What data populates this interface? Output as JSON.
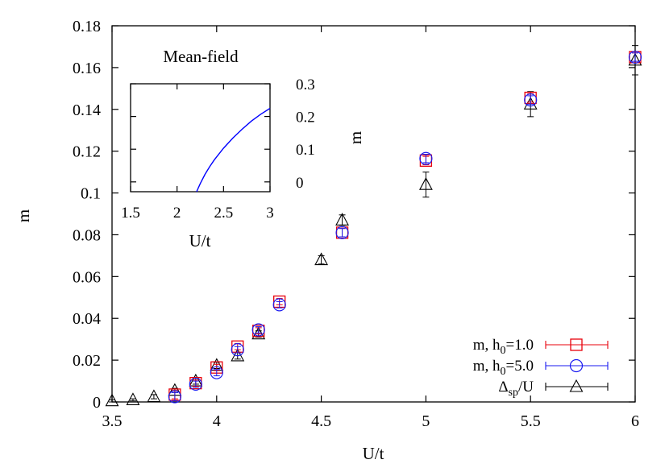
{
  "chart_data": [
    {
      "type": "scatter",
      "title": "",
      "xlabel": "U/t",
      "ylabel": "m",
      "xlim": [
        3.5,
        6
      ],
      "ylim": [
        0,
        0.18
      ],
      "x_ticks": [
        3.5,
        4,
        4.5,
        5,
        5.5,
        6
      ],
      "x_tick_labels": [
        "3.5",
        "4",
        "4.5",
        "5",
        "5.5",
        "6"
      ],
      "y_ticks": [
        0,
        0.02,
        0.04,
        0.06,
        0.08,
        0.1,
        0.12,
        0.14,
        0.16,
        0.18
      ],
      "y_tick_labels": [
        "0",
        "0.02",
        "0.04",
        "0.06",
        "0.08",
        "0.1",
        "0.12",
        "0.14",
        "0.16",
        "0.18"
      ],
      "grid": false,
      "legend_position": "bottom-right",
      "series": [
        {
          "name": "m, h0=1.0",
          "legend_main": "m, h",
          "legend_sub": "0",
          "legend_tail": "=1.0",
          "marker": "square",
          "color": "#e8000b",
          "points": [
            {
              "x": 3.8,
              "y": 0.0035,
              "err": 0.002
            },
            {
              "x": 3.9,
              "y": 0.009,
              "err": 0.0015
            },
            {
              "x": 4.0,
              "y": 0.0165,
              "err": 0.0015
            },
            {
              "x": 4.1,
              "y": 0.0265,
              "err": 0.0015
            },
            {
              "x": 4.2,
              "y": 0.034,
              "err": 0.0015
            },
            {
              "x": 4.3,
              "y": 0.048,
              "err": 0.0015
            },
            {
              "x": 4.6,
              "y": 0.081,
              "err": 0.002
            },
            {
              "x": 5.0,
              "y": 0.1155,
              "err": 0.002
            },
            {
              "x": 5.5,
              "y": 0.1455,
              "err": 0.002
            },
            {
              "x": 6.0,
              "y": 0.165,
              "err": 0.002
            }
          ]
        },
        {
          "name": "m, h0=5.0",
          "legend_main": "m, h",
          "legend_sub": "0",
          "legend_tail": "=5.0",
          "marker": "circle",
          "color": "#1a1af0",
          "points": [
            {
              "x": 3.8,
              "y": 0.0025,
              "err": 0.002
            },
            {
              "x": 3.9,
              "y": 0.0085,
              "err": 0.0015
            },
            {
              "x": 4.0,
              "y": 0.014,
              "err": 0.0015
            },
            {
              "x": 4.1,
              "y": 0.025,
              "err": 0.0015
            },
            {
              "x": 4.2,
              "y": 0.0345,
              "err": 0.0015
            },
            {
              "x": 4.3,
              "y": 0.0465,
              "err": 0.0015
            },
            {
              "x": 4.6,
              "y": 0.081,
              "err": 0.002
            },
            {
              "x": 5.0,
              "y": 0.1165,
              "err": 0.002
            },
            {
              "x": 5.5,
              "y": 0.1445,
              "err": 0.002
            },
            {
              "x": 6.0,
              "y": 0.165,
              "err": 0.002
            }
          ]
        },
        {
          "name": "Δsp/U",
          "legend_main": "Δ",
          "legend_sub": "sp",
          "legend_tail": "/U",
          "marker": "triangle",
          "color": "#000000",
          "points": [
            {
              "x": 3.5,
              "y": 0.0005,
              "err": 0.0005
            },
            {
              "x": 3.6,
              "y": 0.001,
              "err": 0.0005
            },
            {
              "x": 3.7,
              "y": 0.0025,
              "err": 0.001
            },
            {
              "x": 3.8,
              "y": 0.0055,
              "err": 0.001
            },
            {
              "x": 3.9,
              "y": 0.01,
              "err": 0.0015
            },
            {
              "x": 4.0,
              "y": 0.0175,
              "err": 0.0015
            },
            {
              "x": 4.1,
              "y": 0.022,
              "err": 0.0015
            },
            {
              "x": 4.2,
              "y": 0.0325,
              "err": 0.0015
            },
            {
              "x": 4.5,
              "y": 0.068,
              "err": 0.002
            },
            {
              "x": 4.6,
              "y": 0.087,
              "err": 0.0025
            },
            {
              "x": 5.0,
              "y": 0.104,
              "err": 0.006
            },
            {
              "x": 5.5,
              "y": 0.1425,
              "err": 0.006
            },
            {
              "x": 6.0,
              "y": 0.1635,
              "err": 0.007
            }
          ]
        }
      ]
    },
    {
      "type": "line",
      "title": "Mean-field",
      "xlabel": "U/t",
      "ylabel": "m",
      "xlim": [
        1.5,
        3
      ],
      "ylim": [
        -0.03,
        0.3
      ],
      "x_ticks": [
        1.5,
        2,
        2.5,
        3
      ],
      "x_tick_labels": [
        "1.5",
        "2",
        "2.5",
        "3"
      ],
      "y_ticks": [
        0,
        0.1,
        0.2,
        0.3
      ],
      "y_tick_labels": [
        "0",
        "0.1",
        "0.2",
        "0.3"
      ],
      "grid": false,
      "series": [
        {
          "color": "#0000ff",
          "x": [
            2.21,
            2.25,
            2.3,
            2.35,
            2.4,
            2.5,
            2.6,
            2.7,
            2.8,
            2.9,
            3.0
          ],
          "y": [
            -0.03,
            -0.005,
            0.023,
            0.046,
            0.067,
            0.103,
            0.134,
            0.161,
            0.186,
            0.207,
            0.225
          ]
        }
      ]
    }
  ]
}
